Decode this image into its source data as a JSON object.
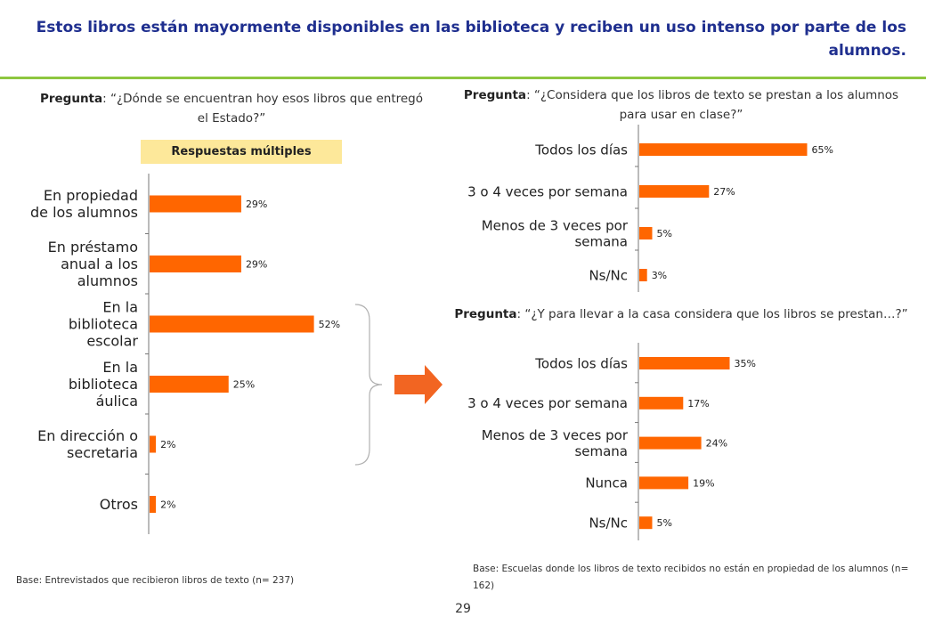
{
  "title": "Estos libros están mayormente disponibles en las biblioteca y reciben un uso intenso por parte de los alumnos.",
  "colors": {
    "accent_bar": "#ff6600",
    "title": "#1f2f8f",
    "rule": "#8dc63f",
    "badge": "#fde89a"
  },
  "q1": {
    "label": "Pregunta",
    "text": ": “¿Dónde se encuentran hoy esos libros que entregó el Estado?”"
  },
  "badge": "Respuestas múltiples",
  "q2": {
    "label": "Pregunta",
    "text": ": “¿Considera que los libros de texto se prestan a los alumnos para usar en clase?”"
  },
  "q3": {
    "label": "Pregunta",
    "text": ": “¿Y para llevar a la casa considera que los libros se prestan…?”"
  },
  "base1": "Base: Entrevistados que recibieron libros de texto (n= 237)",
  "base2": "Base: Escuelas donde los libros de texto recibidos no están en propiedad de los alumnos (n= 162)",
  "page_number": "29",
  "chart_data": [
    {
      "type": "bar",
      "orientation": "horizontal",
      "categories": [
        [
          "En propiedad",
          "de los alumnos"
        ],
        [
          "En préstamo",
          "anual a los",
          "alumnos"
        ],
        [
          "En la",
          "biblioteca",
          "escolar"
        ],
        [
          "En la",
          "biblioteca",
          "áulica"
        ],
        [
          "En dirección o",
          "secretaria"
        ],
        [
          "Otros"
        ]
      ],
      "values": [
        29,
        29,
        52,
        25,
        2,
        2
      ],
      "data_labels": [
        "29%",
        "29%",
        "52%",
        "25%",
        "2%",
        "2%"
      ]
    },
    {
      "type": "bar",
      "orientation": "horizontal",
      "categories": [
        [
          "Todos los días"
        ],
        [
          "3 o 4 veces por semana"
        ],
        [
          "Menos de 3 veces por",
          "semana"
        ],
        [
          "Ns/Nc"
        ]
      ],
      "values": [
        65,
        27,
        5,
        3
      ],
      "data_labels": [
        "65%",
        "27%",
        "5%",
        "3%"
      ]
    },
    {
      "type": "bar",
      "orientation": "horizontal",
      "categories": [
        [
          "Todos los días"
        ],
        [
          "3 o 4 veces por semana"
        ],
        [
          "Menos de 3 veces por",
          "semana"
        ],
        [
          "Nunca"
        ],
        [
          "Ns/Nc"
        ]
      ],
      "values": [
        35,
        17,
        24,
        19,
        5
      ],
      "data_labels": [
        "35%",
        "17%",
        "24%",
        "19%",
        "5%"
      ]
    }
  ]
}
